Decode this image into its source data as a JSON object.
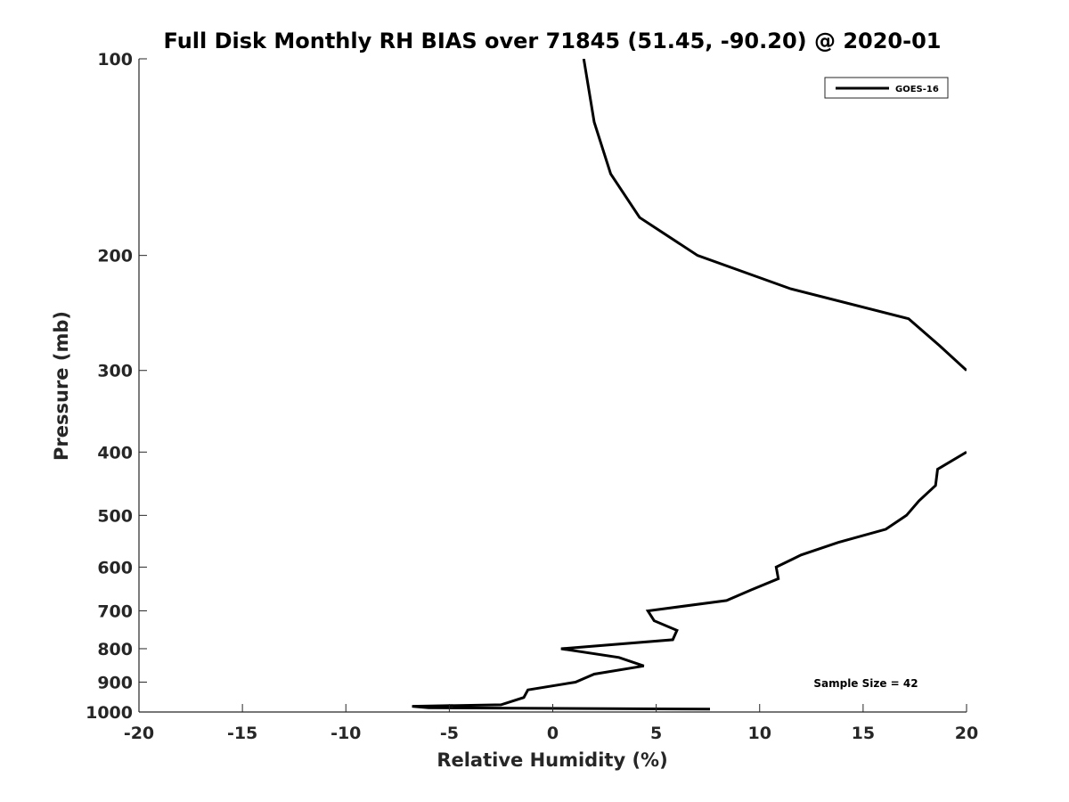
{
  "chart_data": {
    "type": "line",
    "title": "Full Disk Monthly RH BIAS over 71845 (51.45, -90.20) @ 2020-01",
    "xlabel": "Relative Humidity (%)",
    "ylabel": "Pressure (mb)",
    "xlim": [
      -20,
      20
    ],
    "ylim": [
      100,
      1000
    ],
    "yscale": "log",
    "y_reversed": true,
    "grid": false,
    "x_ticks": [
      -20,
      -15,
      -10,
      -5,
      0,
      5,
      10,
      15,
      20
    ],
    "x_tick_labels": [
      "-20",
      "-15",
      "-10",
      "-5",
      "0",
      "5",
      "10",
      "15",
      "20"
    ],
    "y_ticks": [
      100,
      200,
      300,
      400,
      500,
      600,
      700,
      800,
      900,
      1000
    ],
    "y_tick_labels": [
      "100",
      "200",
      "300",
      "400",
      "500",
      "600",
      "700",
      "800",
      "900",
      "1000"
    ],
    "legend": {
      "position": "top-right",
      "entries": [
        "GOES-16"
      ]
    },
    "annotation": "Sample Size = 42",
    "series": [
      {
        "name": "GOES-16",
        "color": "#000000",
        "segments": [
          {
            "x": [
              1.5,
              2.0,
              2.8,
              4.2,
              7.0,
              11.5,
              17.2,
              18.7,
              20.0
            ],
            "y": [
              100,
              125,
              150,
              175,
              200,
              225,
              250,
              275,
              300
            ]
          },
          {
            "x": [
              20.0,
              18.6,
              18.5,
              17.7,
              17.1,
              16.1,
              13.8,
              12.0,
              10.8,
              10.9,
              9.6,
              8.4,
              4.6,
              4.9,
              6.0,
              5.8,
              0.4,
              3.2,
              4.4,
              2.0,
              1.1,
              -1.2,
              -1.4,
              -2.5,
              -6.8,
              -6.0,
              7.6
            ],
            "y": [
              400,
              425,
              450,
              475,
              500,
              525,
              550,
              575,
              600,
              625,
              650,
              675,
              700,
              725,
              750,
              775,
              800,
              825,
              850,
              875,
              900,
              925,
              950,
              975,
              980,
              985,
              990
            ]
          }
        ]
      }
    ]
  }
}
